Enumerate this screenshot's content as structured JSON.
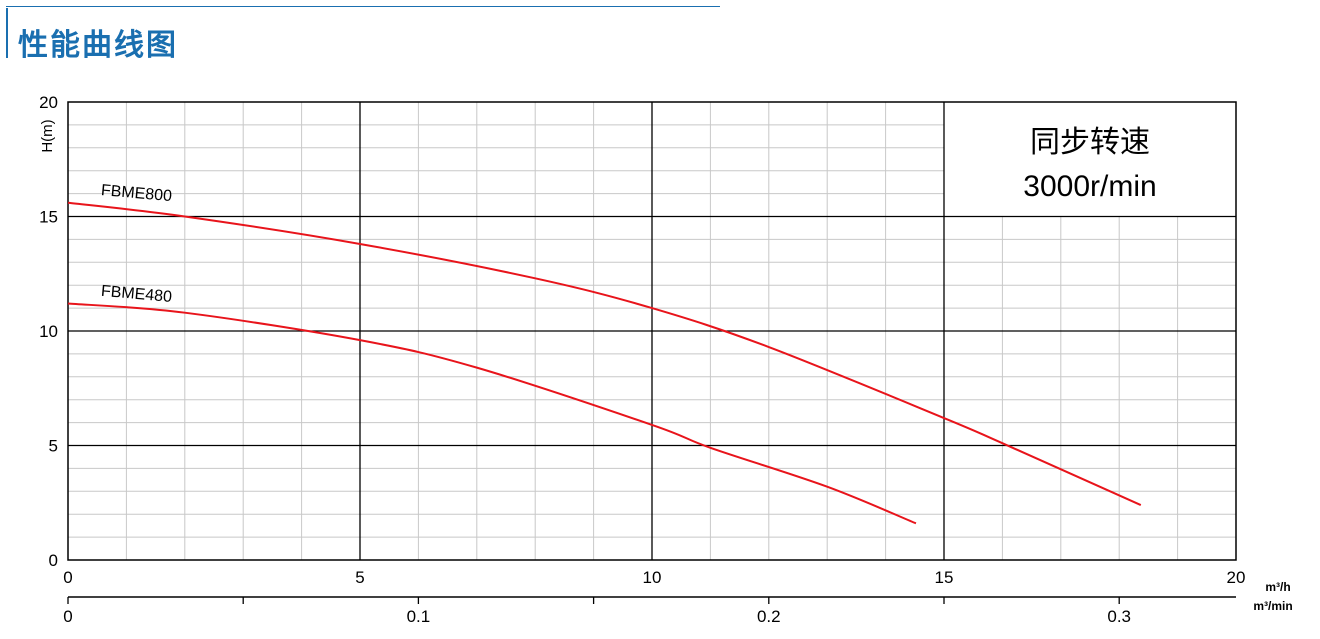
{
  "header": {
    "title": "性能曲线图",
    "accent_color": "#1a6fb0"
  },
  "chart_data": {
    "type": "line",
    "title": "",
    "ylabel": "H(m)",
    "xlabel": "m³/h",
    "xlabel2": "m³/min",
    "xlim": [
      0,
      20
    ],
    "ylim": [
      0,
      20
    ],
    "x_ticks": [
      "0",
      "5",
      "10",
      "15",
      "20"
    ],
    "y_ticks": [
      "0",
      "5",
      "10",
      "15",
      "20"
    ],
    "x2_ticks": [
      "0",
      "0.1",
      "0.2",
      "0.3"
    ],
    "x2_ticks_values": [
      0,
      0.1,
      0.2,
      0.3
    ],
    "grid": true,
    "annotation": {
      "line1": "同步转速",
      "line2": "3000r/min"
    },
    "series": [
      {
        "name": "FBME800",
        "color": "#e8141b",
        "points": [
          [
            0,
            15.6
          ],
          [
            2,
            15.0
          ],
          [
            5,
            13.8
          ],
          [
            8,
            12.3
          ],
          [
            10,
            11.0
          ],
          [
            12,
            9.3
          ],
          [
            15,
            6.2
          ],
          [
            16,
            5.1
          ],
          [
            18.37,
            2.4
          ]
        ]
      },
      {
        "name": "FBME480",
        "color": "#e8141b",
        "points": [
          [
            0,
            11.2
          ],
          [
            2,
            10.8
          ],
          [
            5,
            9.6
          ],
          [
            7,
            8.4
          ],
          [
            10,
            5.9
          ],
          [
            11,
            4.9
          ],
          [
            13,
            3.2
          ],
          [
            14.52,
            1.6
          ]
        ]
      }
    ]
  }
}
